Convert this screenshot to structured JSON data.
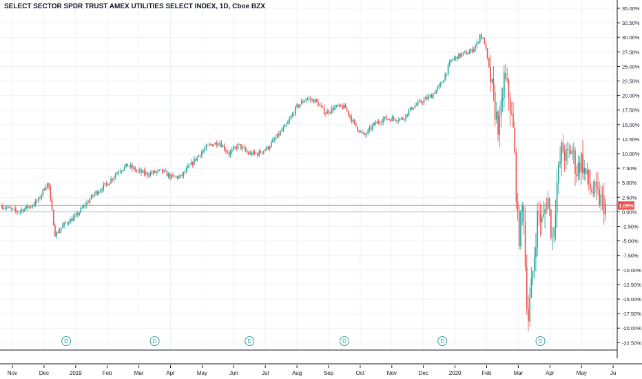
{
  "header": {
    "title": "SELECT SECTOR SPDR TRUST AMEX UTILITIES SELECT INDEX, 1D, Cboe BZX"
  },
  "colors": {
    "up": "#26a69a",
    "down": "#ef5350",
    "grid": "#eef1f6",
    "axis": "#131722",
    "last_price": "#ef5350",
    "zero_line": "#9598a1",
    "dividend": "#26a69a"
  },
  "chart_data": {
    "type": "candlestick",
    "title": "SELECT SECTOR SPDR TRUST AMEX UTILITIES SELECT INDEX, 1D, Cboe BZX",
    "y_unit": "%",
    "ylim": [
      -23.5,
      36
    ],
    "y_ticks": [
      "35.00%",
      "32.50%",
      "30.00%",
      "27.50%",
      "25.00%",
      "22.50%",
      "20.00%",
      "17.50%",
      "15.00%",
      "12.50%",
      "10.00%",
      "7.50%",
      "5.00%",
      "2.50%",
      "0.00%",
      "-2.50%",
      "-5.00%",
      "-7.50%",
      "-10.00%",
      "-12.50%",
      "-15.00%",
      "-17.50%",
      "-20.00%",
      "-22.50%"
    ],
    "y_tick_values": [
      35,
      32.5,
      30,
      27.5,
      25,
      22.5,
      20,
      17.5,
      15,
      12.5,
      10,
      7.5,
      5,
      2.5,
      0,
      -2.5,
      -5,
      -7.5,
      -10,
      -12.5,
      -15,
      -17.5,
      -20,
      -22.5
    ],
    "x_labels": [
      "Nov",
      "Dec",
      "2019",
      "Feb",
      "Mar",
      "Apr",
      "May",
      "Jun",
      "Jul",
      "Aug",
      "Sep",
      "Oct",
      "Nov",
      "Dec",
      "2020",
      "Feb",
      "Mar",
      "Apr",
      "May",
      "Ju"
    ],
    "x_label_month_index": [
      0,
      1,
      2,
      3,
      4,
      5,
      6,
      7,
      8,
      9,
      10,
      11,
      12,
      13,
      14,
      15,
      16,
      17,
      18,
      19
    ],
    "x_start": "2018-10-22",
    "last_value": 1.09,
    "last_value_label": "1.09%",
    "dividend_markers": [
      "D",
      "D",
      "D",
      "D",
      "D",
      "D"
    ],
    "dividend_month_index": [
      1.7,
      4.5,
      7.5,
      10.5,
      13.6,
      16.7
    ],
    "path_keypoints": [
      [
        0,
        1
      ],
      [
        3,
        0
      ],
      [
        6,
        1
      ],
      [
        7.5,
        2
      ],
      [
        9,
        4.5
      ],
      [
        9.6,
        5
      ],
      [
        10,
        2
      ],
      [
        11,
        -4
      ],
      [
        13,
        -2
      ],
      [
        15,
        -1
      ],
      [
        17,
        1
      ],
      [
        19,
        3
      ],
      [
        22,
        5
      ],
      [
        24,
        7
      ],
      [
        26,
        8
      ],
      [
        28,
        7
      ],
      [
        30,
        6.5
      ],
      [
        33,
        7
      ],
      [
        35,
        6
      ],
      [
        37,
        6
      ],
      [
        39,
        8
      ],
      [
        41,
        10
      ],
      [
        43,
        11.5
      ],
      [
        45,
        12
      ],
      [
        47,
        10
      ],
      [
        49,
        11.5
      ],
      [
        51,
        10
      ],
      [
        53,
        10
      ],
      [
        55,
        11
      ],
      [
        57,
        13
      ],
      [
        59,
        15
      ],
      [
        61,
        18
      ],
      [
        63,
        19.5
      ],
      [
        65,
        19
      ],
      [
        67,
        17
      ],
      [
        69,
        18
      ],
      [
        71,
        18
      ],
      [
        73,
        15
      ],
      [
        75,
        13
      ],
      [
        77,
        15
      ],
      [
        79,
        16
      ],
      [
        81,
        16
      ],
      [
        83,
        16
      ],
      [
        85,
        18
      ],
      [
        87,
        19
      ],
      [
        89,
        20
      ],
      [
        91,
        22
      ],
      [
        93,
        26
      ],
      [
        95,
        27
      ],
      [
        97,
        27.5
      ],
      [
        98.5,
        29
      ],
      [
        99,
        30.5
      ],
      [
        100,
        29
      ],
      [
        101,
        24
      ],
      [
        102,
        18
      ],
      [
        103,
        14
      ],
      [
        104,
        23
      ],
      [
        105,
        20
      ],
      [
        106,
        13
      ],
      [
        107,
        -5
      ],
      [
        108,
        2
      ],
      [
        108.5,
        -12
      ],
      [
        109,
        -18.5
      ],
      [
        110,
        -10
      ],
      [
        111,
        0
      ],
      [
        112,
        -2
      ],
      [
        113,
        3
      ],
      [
        114,
        -5
      ],
      [
        115,
        5
      ],
      [
        116,
        11
      ],
      [
        117,
        9
      ],
      [
        118,
        11
      ],
      [
        119,
        7
      ],
      [
        120,
        9
      ],
      [
        121,
        6
      ],
      [
        122,
        4
      ],
      [
        123,
        3
      ],
      [
        124,
        2
      ],
      [
        125,
        1
      ]
    ]
  }
}
